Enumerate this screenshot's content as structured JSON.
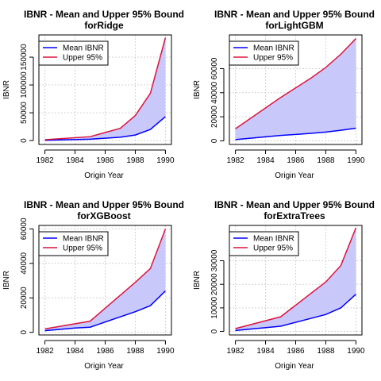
{
  "colors": {
    "mean_line": "#0000FF",
    "upper_line": "#DC143C",
    "band_fill": "#C8C8FA",
    "grid": "#D3D3D3"
  },
  "chart_data": [
    {
      "type": "line",
      "title_line1": "IBNR - Mean and Upper 95% Bound",
      "title_line2": "forRidge",
      "xlabel": "Origin Year",
      "ylabel": "IBNR",
      "x": [
        1982,
        1985,
        1987,
        1988,
        1989,
        1990
      ],
      "x_ticks": [
        1982,
        1984,
        1986,
        1988,
        1990
      ],
      "y_ticks": [
        0,
        50000,
        100000,
        150000
      ],
      "xlim": [
        1981.6,
        1990.4
      ],
      "ylim": [
        -7000,
        190000
      ],
      "legend_position": "top-left",
      "grid": true,
      "shaded_band_between_series": true,
      "series": [
        {
          "name": "Mean IBNR",
          "values": [
            500,
            2500,
            6000,
            10000,
            20000,
            43000
          ]
        },
        {
          "name": "Upper 95%",
          "values": [
            1500,
            7000,
            22000,
            45000,
            85000,
            185000
          ]
        }
      ]
    },
    {
      "type": "line",
      "title_line1": "IBNR - Mean and Upper 95% Bound",
      "title_line2": "forLightGBM",
      "xlabel": "Origin Year",
      "ylabel": "IBNR",
      "x": [
        1982,
        1985,
        1987,
        1988,
        1989,
        1990
      ],
      "x_ticks": [
        1982,
        1984,
        1986,
        1988,
        1990
      ],
      "y_ticks": [
        0,
        20000,
        40000,
        60000
      ],
      "xlim": [
        1981.6,
        1990.4
      ],
      "ylim": [
        -3000,
        88000
      ],
      "legend_position": "top-left",
      "grid": true,
      "shaded_band_between_series": true,
      "series": [
        {
          "name": "Mean IBNR",
          "values": [
            1000,
            4500,
            6200,
            7300,
            8800,
            10500
          ]
        },
        {
          "name": "Upper 95%",
          "values": [
            10000,
            36000,
            52000,
            61000,
            72000,
            85000
          ]
        }
      ]
    },
    {
      "type": "line",
      "title_line1": "IBNR - Mean and Upper 95% Bound",
      "title_line2": "forXGBoost",
      "xlabel": "Origin Year",
      "ylabel": "IBNR",
      "x": [
        1982,
        1984,
        1985,
        1988,
        1989,
        1990
      ],
      "x_ticks": [
        1982,
        1984,
        1986,
        1988,
        1990
      ],
      "y_ticks": [
        0,
        20000,
        40000,
        60000
      ],
      "xlim": [
        1981.6,
        1990.4
      ],
      "ylim": [
        -1500,
        62000
      ],
      "legend_position": "top-left",
      "grid": true,
      "shaded_band_between_series": true,
      "series": [
        {
          "name": "Mean IBNR",
          "values": [
            1000,
            2500,
            3000,
            12000,
            15500,
            24000
          ]
        },
        {
          "name": "Upper 95%",
          "values": [
            2000,
            5000,
            6500,
            29000,
            37000,
            60000
          ]
        }
      ]
    },
    {
      "type": "line",
      "title_line1": "IBNR - Mean and Upper 95% Bound",
      "title_line2": "forExtraTrees",
      "xlabel": "Origin Year",
      "ylabel": "IBNR",
      "x": [
        1982,
        1985,
        1988,
        1989,
        1990
      ],
      "x_ticks": [
        1982,
        1984,
        1986,
        1988,
        1990
      ],
      "y_ticks": [
        0,
        10000,
        20000,
        30000
      ],
      "xlim": [
        1981.6,
        1990.4
      ],
      "ylim": [
        -1500,
        45000
      ],
      "legend_position": "top-left",
      "grid": true,
      "shaded_band_between_series": true,
      "series": [
        {
          "name": "Mean IBNR",
          "values": [
            400,
            2200,
            7200,
            10000,
            15800
          ]
        },
        {
          "name": "Upper 95%",
          "values": [
            1200,
            6200,
            21000,
            28000,
            44000
          ]
        }
      ]
    }
  ]
}
